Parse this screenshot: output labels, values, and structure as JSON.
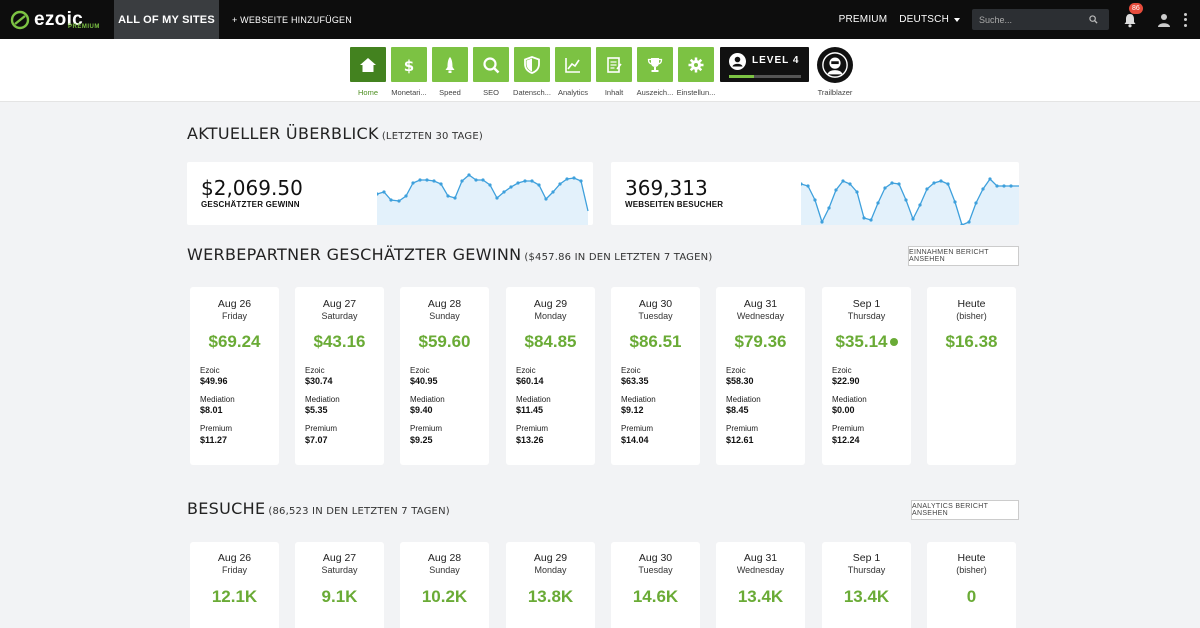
{
  "topnav": {
    "logo_text": "ezoic",
    "logo_sub": "PREMIUM",
    "all_sites": "ALL OF MY SITES",
    "add_site": "+ WEBSEITE HINZUFÜGEN",
    "premium": "PREMIUM",
    "language": "DEUTSCH",
    "search_placeholder": "Suche...",
    "notification_count": "86"
  },
  "tools": [
    {
      "label": "Home",
      "icon": "home-icon",
      "active": true
    },
    {
      "label": "Monetari...",
      "icon": "dollar-icon"
    },
    {
      "label": "Speed",
      "icon": "rocket-icon"
    },
    {
      "label": "SEO",
      "icon": "magnifier-icon"
    },
    {
      "label": "Datensch...",
      "icon": "shield-icon"
    },
    {
      "label": "Analytics",
      "icon": "chart-line-icon"
    },
    {
      "label": "Inhalt",
      "icon": "document-icon"
    },
    {
      "label": "Auszeich...",
      "icon": "trophy-icon"
    },
    {
      "label": "Einstellun...",
      "icon": "gear-icon"
    }
  ],
  "level": {
    "text": "LEVEL 4",
    "progress": 0.35
  },
  "trailblazer": {
    "label": "Trailblazer"
  },
  "overview": {
    "title": "Aktueller Überblick",
    "subtitle": "(LETZTEN 30 TAGE)",
    "earnings_value": "$2,069.50",
    "earnings_label": "GESCHÄTZTER GEWINN",
    "visitors_value": "369,313",
    "visitors_label": "WEBSEITEN BESUCHER",
    "spark_color": "#3ea0dc",
    "spark_fill": "#e3f1fb"
  },
  "earnings_section": {
    "title": "Werbepartner geschätzter Gewinn",
    "subtitle": "($457.86 IN DEN LETZTEN 7 TAGEN)",
    "button": "EINNAHMEN BERICHT ANSEHEN",
    "ezoic_label": "Ezoic",
    "mediation_label": "Mediation",
    "premium_label": "Premium",
    "days": [
      {
        "date": "Aug 26",
        "day": "Friday",
        "total": "$69.24",
        "ezoic": "$49.96",
        "mediation": "$8.01",
        "premium": "$11.27"
      },
      {
        "date": "Aug 27",
        "day": "Saturday",
        "total": "$43.16",
        "ezoic": "$30.74",
        "mediation": "$5.35",
        "premium": "$7.07"
      },
      {
        "date": "Aug 28",
        "day": "Sunday",
        "total": "$59.60",
        "ezoic": "$40.95",
        "mediation": "$9.40",
        "premium": "$9.25"
      },
      {
        "date": "Aug 29",
        "day": "Monday",
        "total": "$84.85",
        "ezoic": "$60.14",
        "mediation": "$11.45",
        "premium": "$13.26"
      },
      {
        "date": "Aug 30",
        "day": "Tuesday",
        "total": "$86.51",
        "ezoic": "$63.35",
        "mediation": "$9.12",
        "premium": "$14.04"
      },
      {
        "date": "Aug 31",
        "day": "Wednesday",
        "total": "$79.36",
        "ezoic": "$58.30",
        "mediation": "$8.45",
        "premium": "$12.61"
      },
      {
        "date": "Sep 1",
        "day": "Thursday",
        "total": "$35.14",
        "ezoic": "$22.90",
        "mediation": "$0.00",
        "premium": "$12.24",
        "info": true
      },
      {
        "date": "Heute",
        "day": "(bisher)",
        "total": "$16.38"
      }
    ]
  },
  "visits_section": {
    "title": "Besuche",
    "subtitle": "(86,523 IN DEN LETZTEN 7 TAGEN)",
    "button": "ANALYTICS BERICHT ANSEHEN",
    "days": [
      {
        "date": "Aug 26",
        "day": "Friday",
        "total": "12.1K"
      },
      {
        "date": "Aug 27",
        "day": "Saturday",
        "total": "9.1K"
      },
      {
        "date": "Aug 28",
        "day": "Sunday",
        "total": "10.2K"
      },
      {
        "date": "Aug 29",
        "day": "Monday",
        "total": "13.8K"
      },
      {
        "date": "Aug 30",
        "day": "Tuesday",
        "total": "14.6K"
      },
      {
        "date": "Aug 31",
        "day": "Wednesday",
        "total": "13.4K"
      },
      {
        "date": "Sep 1",
        "day": "Thursday",
        "total": "13.4K"
      },
      {
        "date": "Heute",
        "day": "(bisher)",
        "total": "0"
      }
    ]
  },
  "colors": {
    "brand_green": "#7cc243",
    "active_green": "#43821f",
    "value_green": "#6aab36",
    "nav_dark": "#0d0d0d"
  }
}
